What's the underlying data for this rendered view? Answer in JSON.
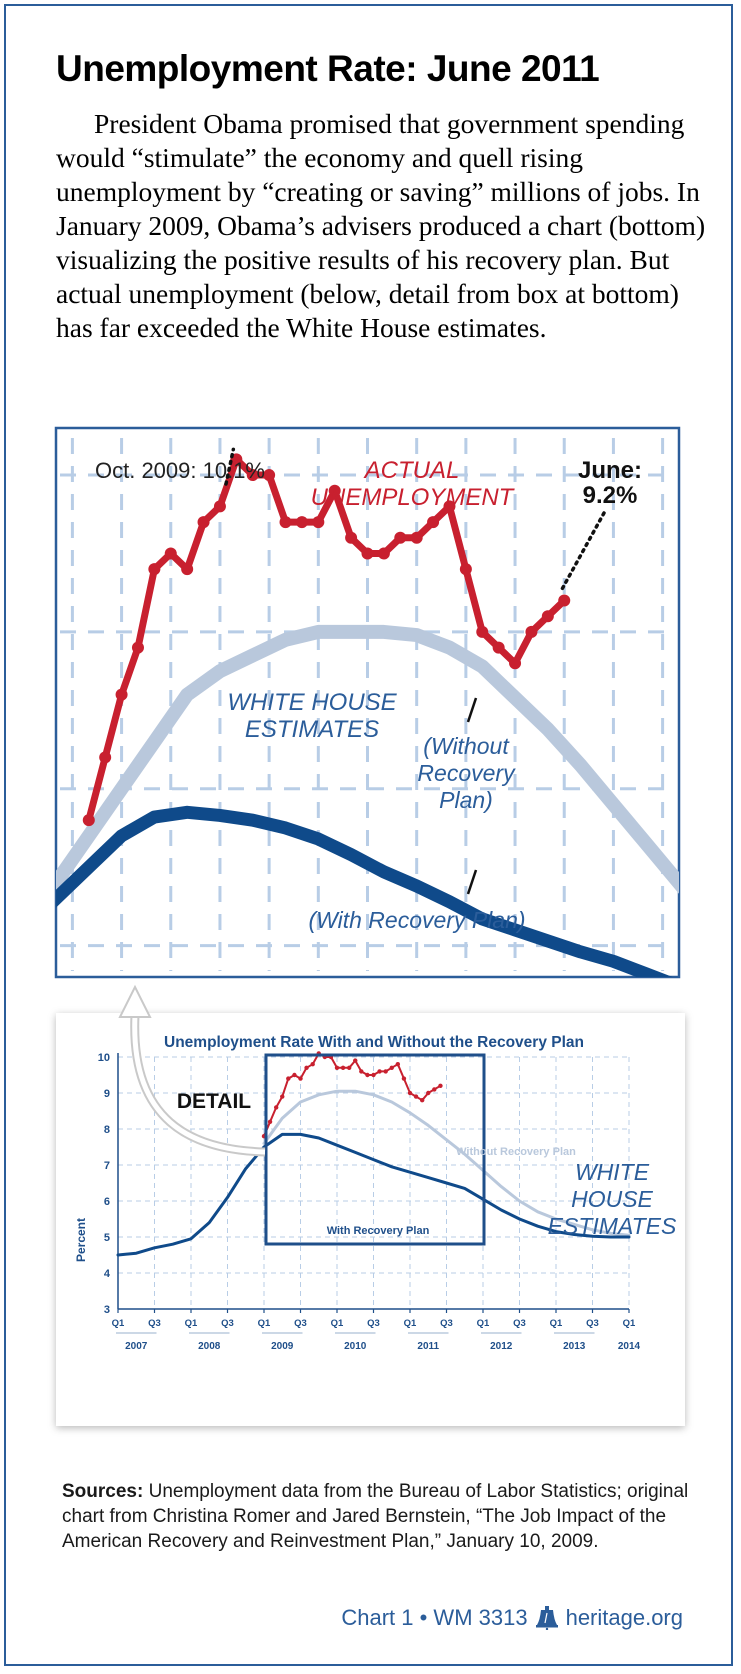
{
  "title": "Unemployment Rate: June 2011",
  "intro": "President Obama promised that government spending would “stimulate” the economy and quell rising unemployment by “creating or saving” millions of jobs. In January 2009, Obama’s advisers produced a chart (bottom) visualizing the positive results of his recovery plan. But actual unemployment (below, detail from box at bottom) has far exceeded the White House estimates.",
  "colors": {
    "actual": "#c8202f",
    "without_plan": "#b9c8dc",
    "with_plan": "#0f4a8a",
    "frame": "#2b5d9a",
    "grid": "#b8cde6"
  },
  "chart_data": [
    {
      "type": "line",
      "title": "",
      "labels": {
        "actual": [
          "ACTUAL",
          "UNEMPLOYMENT"
        ],
        "oct_callout": "Oct. 2009: 10.1%",
        "june_callout": [
          "June:",
          "9.2%"
        ],
        "white_house": [
          "WHITE HOUSE",
          "ESTIMATES"
        ],
        "without": [
          "(Without",
          "Recovery",
          "Plan)"
        ],
        "with": "(With Recovery Plan)"
      },
      "x_range": [
        "2009 Q1",
        "2011 Q4"
      ],
      "ylim": [
        6.8,
        10.3
      ],
      "grid": true,
      "series": [
        {
          "name": "",
          "key": "actual",
          "x": [
            "2009-01",
            "2009-02",
            "2009-03",
            "2009-04",
            "2009-05",
            "2009-06",
            "2009-07",
            "2009-08",
            "2009-09",
            "2009-10",
            "2009-11",
            "2009-12",
            "2010-01",
            "2010-02",
            "2010-03",
            "2010-04",
            "2010-05",
            "2010-06",
            "2010-07",
            "2010-08",
            "2010-09",
            "2010-10",
            "2010-11",
            "2010-12",
            "2011-01",
            "2011-02",
            "2011-03",
            "2011-04",
            "2011-05",
            "2011-06"
          ],
          "values": [
            7.8,
            8.2,
            8.6,
            8.9,
            9.4,
            9.5,
            9.4,
            9.7,
            9.8,
            10.1,
            10.0,
            10.0,
            9.7,
            9.7,
            9.7,
            9.9,
            9.6,
            9.5,
            9.5,
            9.6,
            9.6,
            9.7,
            9.8,
            9.4,
            9.0,
            8.9,
            8.8,
            9.0,
            9.1,
            9.2
          ]
        },
        {
          "name": "",
          "key": "without",
          "x": [
            "2009-01",
            "2009-03",
            "2009-05",
            "2009-07",
            "2009-09",
            "2009-11",
            "2010-01",
            "2010-03",
            "2010-05",
            "2010-07",
            "2010-09",
            "2010-11",
            "2011-01",
            "2011-03",
            "2011-05",
            "2011-07",
            "2011-09",
            "2011-11"
          ],
          "values": [
            7.7,
            8.0,
            8.3,
            8.6,
            8.75,
            8.85,
            8.95,
            9.0,
            9.0,
            9.0,
            8.98,
            8.9,
            8.78,
            8.58,
            8.38,
            8.15,
            7.9,
            7.65
          ]
        },
        {
          "name": "",
          "key": "with",
          "x": [
            "2009-01",
            "2009-03",
            "2009-05",
            "2009-07",
            "2009-09",
            "2009-11",
            "2010-01",
            "2010-03",
            "2010-05",
            "2010-07",
            "2010-09",
            "2010-11",
            "2011-01",
            "2011-03",
            "2011-05",
            "2011-07",
            "2011-09",
            "2011-11"
          ],
          "values": [
            7.5,
            7.7,
            7.82,
            7.85,
            7.83,
            7.8,
            7.75,
            7.68,
            7.58,
            7.47,
            7.38,
            7.28,
            7.17,
            7.1,
            7.03,
            6.96,
            6.9,
            6.82
          ]
        }
      ]
    },
    {
      "type": "line",
      "title": "Unemployment Rate With and Without the Recovery Plan",
      "ylabel": "Percent",
      "ylim": [
        3,
        10
      ],
      "yticks": [
        3,
        4,
        5,
        6,
        7,
        8,
        9,
        10
      ],
      "xlim": [
        2007.0,
        2014.0
      ],
      "xticks": [
        "Q1",
        "Q3",
        "Q1",
        "Q3",
        "Q1",
        "Q3",
        "Q1",
        "Q3",
        "Q1",
        "Q3",
        "Q1",
        "Q3",
        "Q1",
        "Q3",
        "Q1"
      ],
      "year_labels": [
        "2007",
        "2008",
        "2009",
        "2010",
        "2011",
        "2012",
        "2013",
        "2014"
      ],
      "grid": true,
      "labels": {
        "detail": "DETAIL",
        "without": "Without Recovery Plan",
        "with": "With Recovery Plan",
        "white_house": [
          "WHITE",
          "HOUSE",
          "ESTIMATES"
        ]
      },
      "series": [
        {
          "name": "Without Recovery Plan",
          "key": "without",
          "x": [
            2009.0,
            2009.25,
            2009.5,
            2009.75,
            2010.0,
            2010.25,
            2010.5,
            2010.75,
            2011.0,
            2011.25,
            2011.5,
            2011.75,
            2012.0,
            2012.25,
            2012.5,
            2012.75,
            2013.0,
            2013.25,
            2013.5,
            2013.75,
            2014.0
          ],
          "values": [
            7.6,
            8.3,
            8.75,
            8.95,
            9.05,
            9.05,
            8.95,
            8.75,
            8.45,
            8.1,
            7.7,
            7.3,
            6.85,
            6.4,
            6.0,
            5.7,
            5.5,
            5.35,
            5.2,
            5.1,
            5.05
          ]
        },
        {
          "name": "With Recovery Plan",
          "key": "with",
          "x": [
            2007.0,
            2007.25,
            2007.5,
            2007.75,
            2008.0,
            2008.25,
            2008.5,
            2008.75,
            2009.0,
            2009.25,
            2009.5,
            2009.75,
            2010.0,
            2010.25,
            2010.5,
            2010.75,
            2011.0,
            2011.25,
            2011.5,
            2011.75,
            2012.0,
            2012.25,
            2012.5,
            2012.75,
            2013.0,
            2013.25,
            2013.5,
            2013.75,
            2014.0
          ],
          "values": [
            4.5,
            4.55,
            4.7,
            4.8,
            4.95,
            5.4,
            6.1,
            6.9,
            7.5,
            7.85,
            7.85,
            7.75,
            7.55,
            7.35,
            7.15,
            6.95,
            6.8,
            6.65,
            6.5,
            6.35,
            6.05,
            5.75,
            5.5,
            5.3,
            5.15,
            5.07,
            5.02,
            5.0,
            5.0
          ]
        },
        {
          "name": "",
          "key": "actual",
          "x": [
            2009.0,
            2009.083,
            2009.167,
            2009.25,
            2009.333,
            2009.417,
            2009.5,
            2009.583,
            2009.667,
            2009.75,
            2009.833,
            2009.917,
            2010.0,
            2010.083,
            2010.167,
            2010.25,
            2010.333,
            2010.417,
            2010.5,
            2010.583,
            2010.667,
            2010.75,
            2010.833,
            2010.917,
            2011.0,
            2011.083,
            2011.167,
            2011.25,
            2011.333,
            2011.417
          ],
          "values": [
            7.8,
            8.2,
            8.6,
            8.9,
            9.4,
            9.5,
            9.4,
            9.7,
            9.8,
            10.1,
            10.0,
            10.0,
            9.7,
            9.7,
            9.7,
            9.9,
            9.6,
            9.5,
            9.5,
            9.6,
            9.6,
            9.7,
            9.8,
            9.4,
            9.0,
            8.9,
            8.8,
            9.0,
            9.1,
            9.2
          ]
        }
      ]
    }
  ],
  "sources": {
    "label": "Sources:",
    "text": " Unemployment data from the Bureau of Labor Statistics; original chart from Christina Romer and Jared Bernstein, “The Job Impact of the American Recovery and Reinvestment Plan,” January 10, 2009."
  },
  "footer": {
    "chart_id": "Chart 1 • WM 3313",
    "site": "heritage.org",
    "icon": "liberty-bell-icon"
  }
}
